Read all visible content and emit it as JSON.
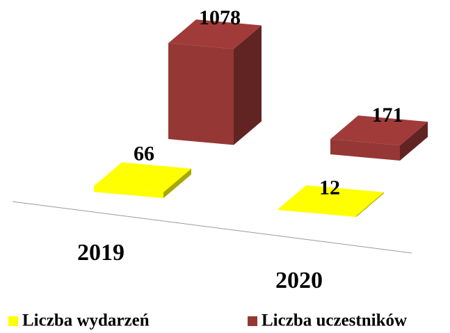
{
  "chart_data": {
    "type": "bar3d",
    "categories": [
      "2019",
      "2020"
    ],
    "series": [
      {
        "name": "Liczba wydarzeń",
        "color": "#ffff00",
        "values": [
          66,
          12
        ]
      },
      {
        "name": "Liczba uczestników",
        "color": "#953735",
        "values": [
          1078,
          171
        ]
      }
    ]
  }
}
